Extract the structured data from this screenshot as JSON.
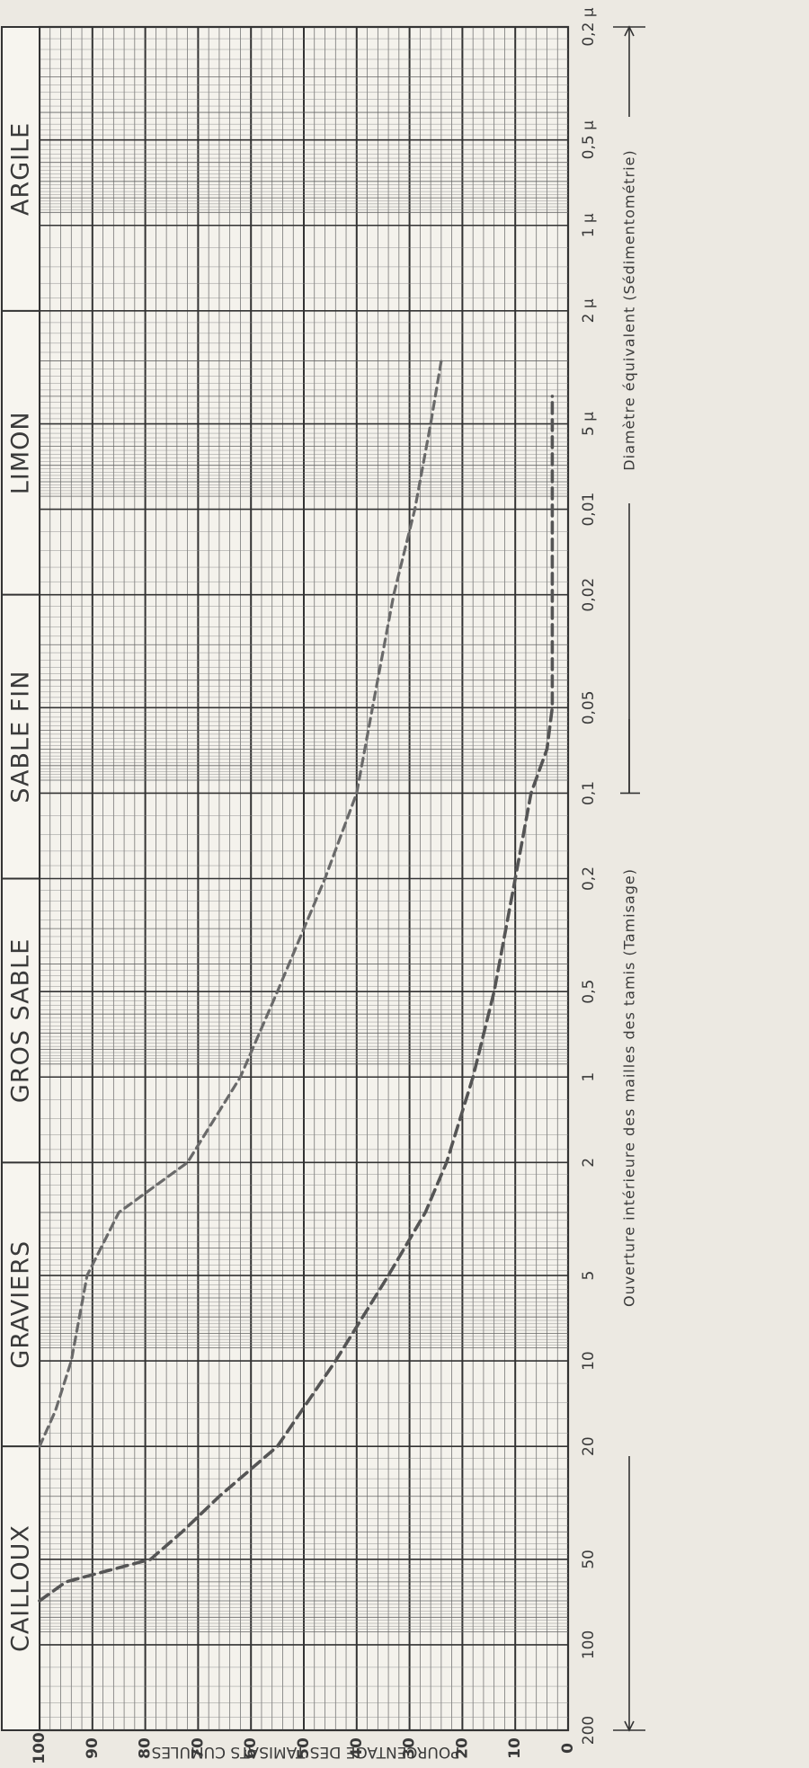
{
  "chart_data": {
    "type": "line",
    "y_scale": "linear",
    "x_scale": "log",
    "ylim": [
      0,
      100
    ],
    "xlim_mm": [
      200,
      0.0002
    ],
    "ylabel": "POURCENTAGE DES TAMISATS CUMULES",
    "xlabel_sieve": "Ouverture intérieure des mailles des tamis (Tamisage)",
    "xlabel_sedimentation": "Diamètre équivalent (Sédimentométrie)",
    "y_ticks": [
      "100",
      "90",
      "80",
      "70",
      "60",
      "50",
      "40",
      "30",
      "20",
      "10",
      "0"
    ],
    "x_tick_labels": [
      "200",
      "100",
      "50",
      "20",
      "10",
      "5",
      "2",
      "1",
      "0,5",
      "0,2",
      "0,1",
      "0,05",
      "0,02",
      "0,01",
      "5 μ",
      "2 μ",
      "1 μ",
      "0,5 μ",
      "0,2 μ"
    ],
    "classes": [
      "CAILLOUX",
      "GRAVIERS",
      "GROS SABLE",
      "SABLE FIN",
      "LIMON",
      "ARGILE"
    ],
    "grid": true,
    "series": [
      {
        "points": [
          [
            20,
            100
          ],
          [
            15,
            97
          ],
          [
            10,
            94
          ],
          [
            5,
            91
          ],
          [
            3,
            85
          ],
          [
            2,
            72
          ],
          [
            1,
            62
          ],
          [
            0.5,
            55
          ],
          [
            0.2,
            46
          ],
          [
            0.1,
            40
          ],
          [
            0.05,
            37
          ],
          [
            0.02,
            33
          ],
          [
            0.01,
            29
          ],
          [
            0.005,
            26
          ],
          [
            0.003,
            24
          ]
        ]
      },
      {
        "points": [
          [
            70,
            100
          ],
          [
            60,
            95
          ],
          [
            50,
            79
          ],
          [
            40,
            73
          ],
          [
            30,
            66
          ],
          [
            20,
            55
          ],
          [
            10,
            44
          ],
          [
            5,
            34
          ],
          [
            3,
            27
          ],
          [
            2,
            23
          ],
          [
            1,
            18
          ],
          [
            0.5,
            14
          ],
          [
            0.2,
            10
          ],
          [
            0.1,
            7
          ],
          [
            0.07,
            4
          ],
          [
            0.05,
            3
          ],
          [
            0.02,
            3
          ],
          [
            0.01,
            3
          ],
          [
            0.005,
            3
          ],
          [
            0.004,
            3
          ]
        ]
      }
    ]
  }
}
